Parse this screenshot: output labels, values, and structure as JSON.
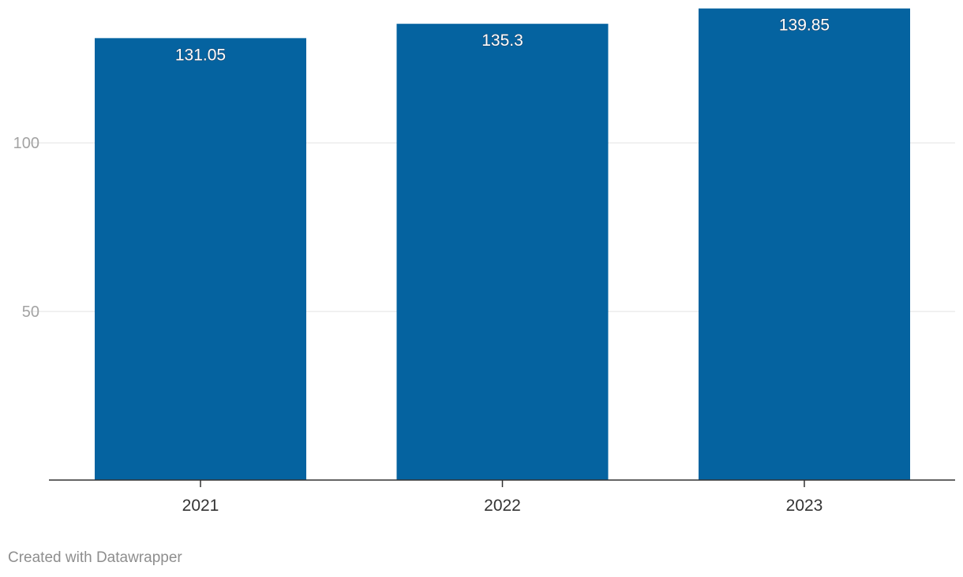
{
  "chart_data": {
    "type": "bar",
    "categories": [
      "2021",
      "2022",
      "2023"
    ],
    "values": [
      131.05,
      135.3,
      139.85
    ],
    "value_labels": [
      "131.05",
      "135.3",
      "139.85"
    ],
    "title": "",
    "xlabel": "",
    "ylabel": "",
    "ylim": [
      0,
      140
    ],
    "yticks": [
      50,
      100
    ],
    "grid": true,
    "legend": "none",
    "bar_color": "#0563a0"
  },
  "footer": {
    "credit": "Created with Datawrapper"
  }
}
